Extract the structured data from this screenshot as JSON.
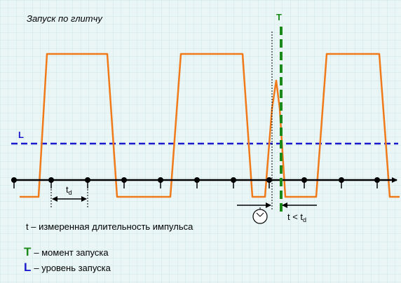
{
  "title": "Запуск по глитчу",
  "trigger_label": "T",
  "level_label": "L",
  "td_label": {
    "base": "t",
    "sub": "d"
  },
  "condition_label": {
    "base": "t < t",
    "sub": "d"
  },
  "note": "t – измеренная длительность импульса",
  "legend": [
    {
      "symbol": "T",
      "text": "– момент запуска"
    },
    {
      "symbol": "L",
      "text": "– уровень запуска"
    }
  ]
}
